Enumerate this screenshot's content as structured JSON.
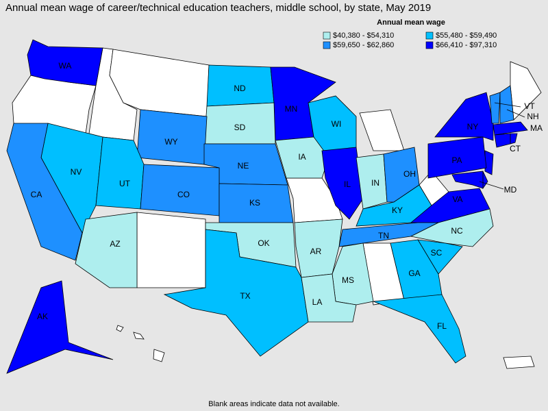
{
  "title": "Annual mean wage of career/technical education teachers, middle school, by state, May 2019",
  "legend": {
    "title": "Annual mean wage",
    "items": [
      {
        "label": "$40,380 - $54,310",
        "color": "#aeeeee"
      },
      {
        "label": "$55,480 - $59,490",
        "color": "#00bfff"
      },
      {
        "label": "$59,650 - $62,860",
        "color": "#1e90ff"
      },
      {
        "label": "$66,410 - $97,310",
        "color": "#0000ff"
      }
    ]
  },
  "states": [
    {
      "label": "WA",
      "color": "#0000ff"
    },
    {
      "label": "ND",
      "color": "#00bfff"
    },
    {
      "label": "MN",
      "color": "#0000ff"
    },
    {
      "label": "SD",
      "color": "#aeeeee"
    },
    {
      "label": "WY",
      "color": "#1e90ff"
    },
    {
      "label": "WI",
      "color": "#00bfff"
    },
    {
      "label": "NY",
      "color": "#0000ff"
    },
    {
      "label": "VT",
      "color": "#1e90ff"
    },
    {
      "label": "NH",
      "color": "#1e90ff"
    },
    {
      "label": "MA",
      "color": "#0000ff"
    },
    {
      "label": "CT",
      "color": "#0000ff"
    },
    {
      "label": "PA",
      "color": "#0000ff"
    },
    {
      "label": "NE",
      "color": "#1e90ff"
    },
    {
      "label": "IA",
      "color": "#aeeeee"
    },
    {
      "label": "NV",
      "color": "#00bfff"
    },
    {
      "label": "UT",
      "color": "#00bfff"
    },
    {
      "label": "CO",
      "color": "#1e90ff"
    },
    {
      "label": "KS",
      "color": "#1e90ff"
    },
    {
      "label": "IL",
      "color": "#0000ff"
    },
    {
      "label": "IN",
      "color": "#aeeeee"
    },
    {
      "label": "OH",
      "color": "#1e90ff"
    },
    {
      "label": "CA",
      "color": "#1e90ff"
    },
    {
      "label": "KY",
      "color": "#00bfff"
    },
    {
      "label": "VA",
      "color": "#0000ff"
    },
    {
      "label": "MD",
      "color": "#0000ff"
    },
    {
      "label": "TN",
      "color": "#1e90ff"
    },
    {
      "label": "NC",
      "color": "#aeeeee"
    },
    {
      "label": "AZ",
      "color": "#aeeeee"
    },
    {
      "label": "OK",
      "color": "#aeeeee"
    },
    {
      "label": "AR",
      "color": "#aeeeee"
    },
    {
      "label": "SC",
      "color": "#00bfff"
    },
    {
      "label": "GA",
      "color": "#00bfff"
    },
    {
      "label": "MS",
      "color": "#aeeeee"
    },
    {
      "label": "TX",
      "color": "#00bfff"
    },
    {
      "label": "LA",
      "color": "#aeeeee"
    },
    {
      "label": "FL",
      "color": "#00bfff"
    },
    {
      "label": "AK",
      "color": "#0000ff"
    }
  ],
  "footnote": "Blank areas indicate data not available."
}
